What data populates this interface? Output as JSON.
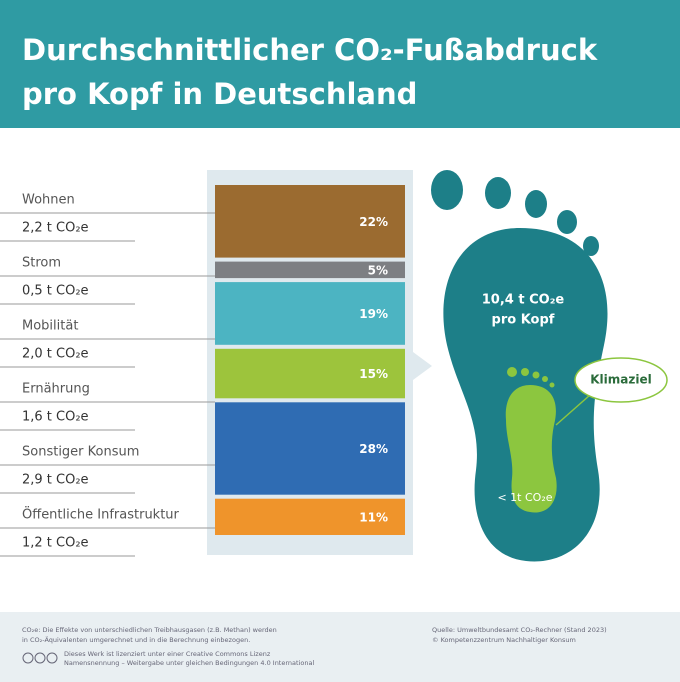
{
  "header": {
    "title_line1": "Durchschnittlicher CO₂-Fußabdruck",
    "title_line2": "pro Kopf in Deutschland"
  },
  "chart_data": {
    "type": "bar",
    "categories": [
      "Wohnen",
      "Strom",
      "Mobilität",
      "Ernährung",
      "Sonstiger Konsum",
      "Öffentliche Infrastruktur"
    ],
    "amounts": [
      "2,2 t CO₂e",
      "0,5 t CO₂e",
      "2,0 t CO₂e",
      "1,6 t CO₂e",
      "2,9 t CO₂e",
      "1,2 t CO₂e"
    ],
    "values": [
      22,
      5,
      19,
      15,
      28,
      11
    ],
    "value_labels": [
      "22%",
      "5%",
      "19%",
      "15%",
      "28%",
      "11%"
    ],
    "colors": [
      "#9b6b30",
      "#7d7f83",
      "#4cb4c2",
      "#9dc43c",
      "#2f6cb3",
      "#ef942b"
    ]
  },
  "footprint": {
    "total": "10,4 t CO₂e",
    "total_sub": "pro Kopf",
    "target": "< 1t CO₂e",
    "target_label": "Klimaziel"
  },
  "footer": {
    "note_line1": "CO₂e: Die Effekte von unterschiedlichen Treibhausgasen (z.B. Methan) werden",
    "note_line2": "in CO₂-Äquivalenten umgerechnet und in die Berechnung einbezogen.",
    "license_line1": "Dieses Werk ist lizenziert unter einer Creative Commons Lizenz",
    "license_line2": "Namensnennung – Weitergabe unter gleichen Bedingungen 4.0 International",
    "source_line1": "Quelle: Umweltbundesamt CO₂-Rechner (Stand 2023)",
    "source_line2": "© Kompetenzzentrum Nachhaltiger Konsum"
  }
}
